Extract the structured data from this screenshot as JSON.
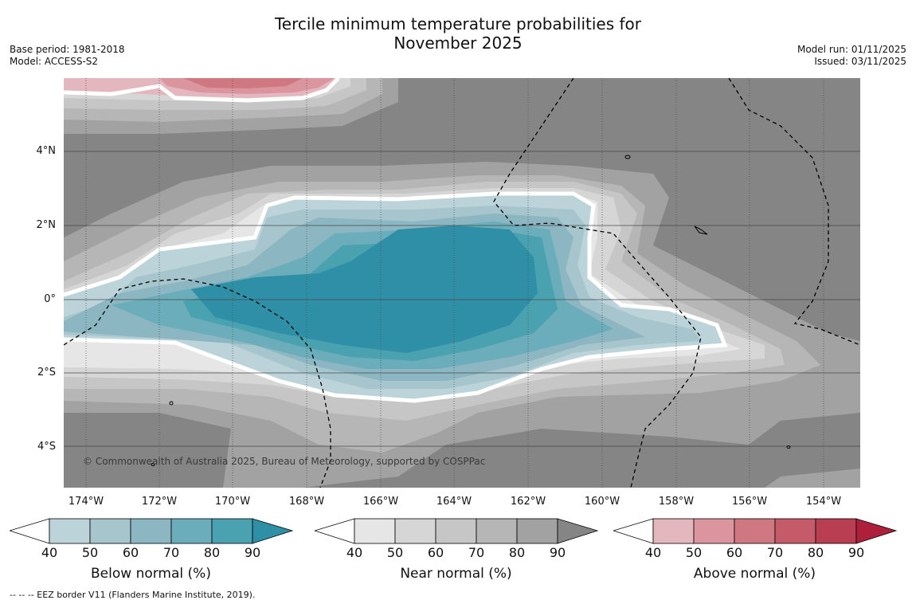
{
  "title_line1": "Tercile minimum temperature probabilities for",
  "title_line2": "November 2025",
  "base_period": "Base period: 1981-2018",
  "model": "Model: ACCESS-S2",
  "model_run": "Model run: 01/11/2025",
  "issued": "Issued: 03/11/2025",
  "copyright": "© Commonwealth of Australia 2025, Bureau of Meteorology, supported by COSPPac",
  "footnote": "--  --  -- EEZ border V11 (Flanders Marine Institute, 2019).",
  "lat_labels": [
    "4°N",
    "2°N",
    "0°",
    "2°S",
    "4°S"
  ],
  "lon_labels": [
    "174°W",
    "172°W",
    "170°W",
    "168°W",
    "166°W",
    "164°W",
    "162°W",
    "160°W",
    "158°W",
    "156°W",
    "154°W"
  ],
  "colorbars": [
    {
      "label": "Below normal (%)",
      "ticks": [
        "40",
        "50",
        "60",
        "70",
        "80",
        "90"
      ],
      "colors": [
        "#bcd3da",
        "#a6c5cc",
        "#8cb6c2",
        "#6badba",
        "#4aa1b0",
        "#2e8fa6"
      ]
    },
    {
      "label": "Near normal (%)",
      "ticks": [
        "40",
        "50",
        "60",
        "70",
        "80",
        "90"
      ],
      "colors": [
        "#e6e6e6",
        "#d6d6d6",
        "#c6c6c6",
        "#b6b6b6",
        "#a2a2a2",
        "#858585"
      ]
    },
    {
      "label": "Above normal (%)",
      "ticks": [
        "40",
        "50",
        "60",
        "70",
        "80",
        "90"
      ],
      "colors": [
        "#e4b6bd",
        "#da959f",
        "#cf7882",
        "#c55b69",
        "#b93e52",
        "#ae1f3b"
      ]
    }
  ],
  "colors": {
    "background_gray": "#858585",
    "white_contour": "#ffffff"
  }
}
